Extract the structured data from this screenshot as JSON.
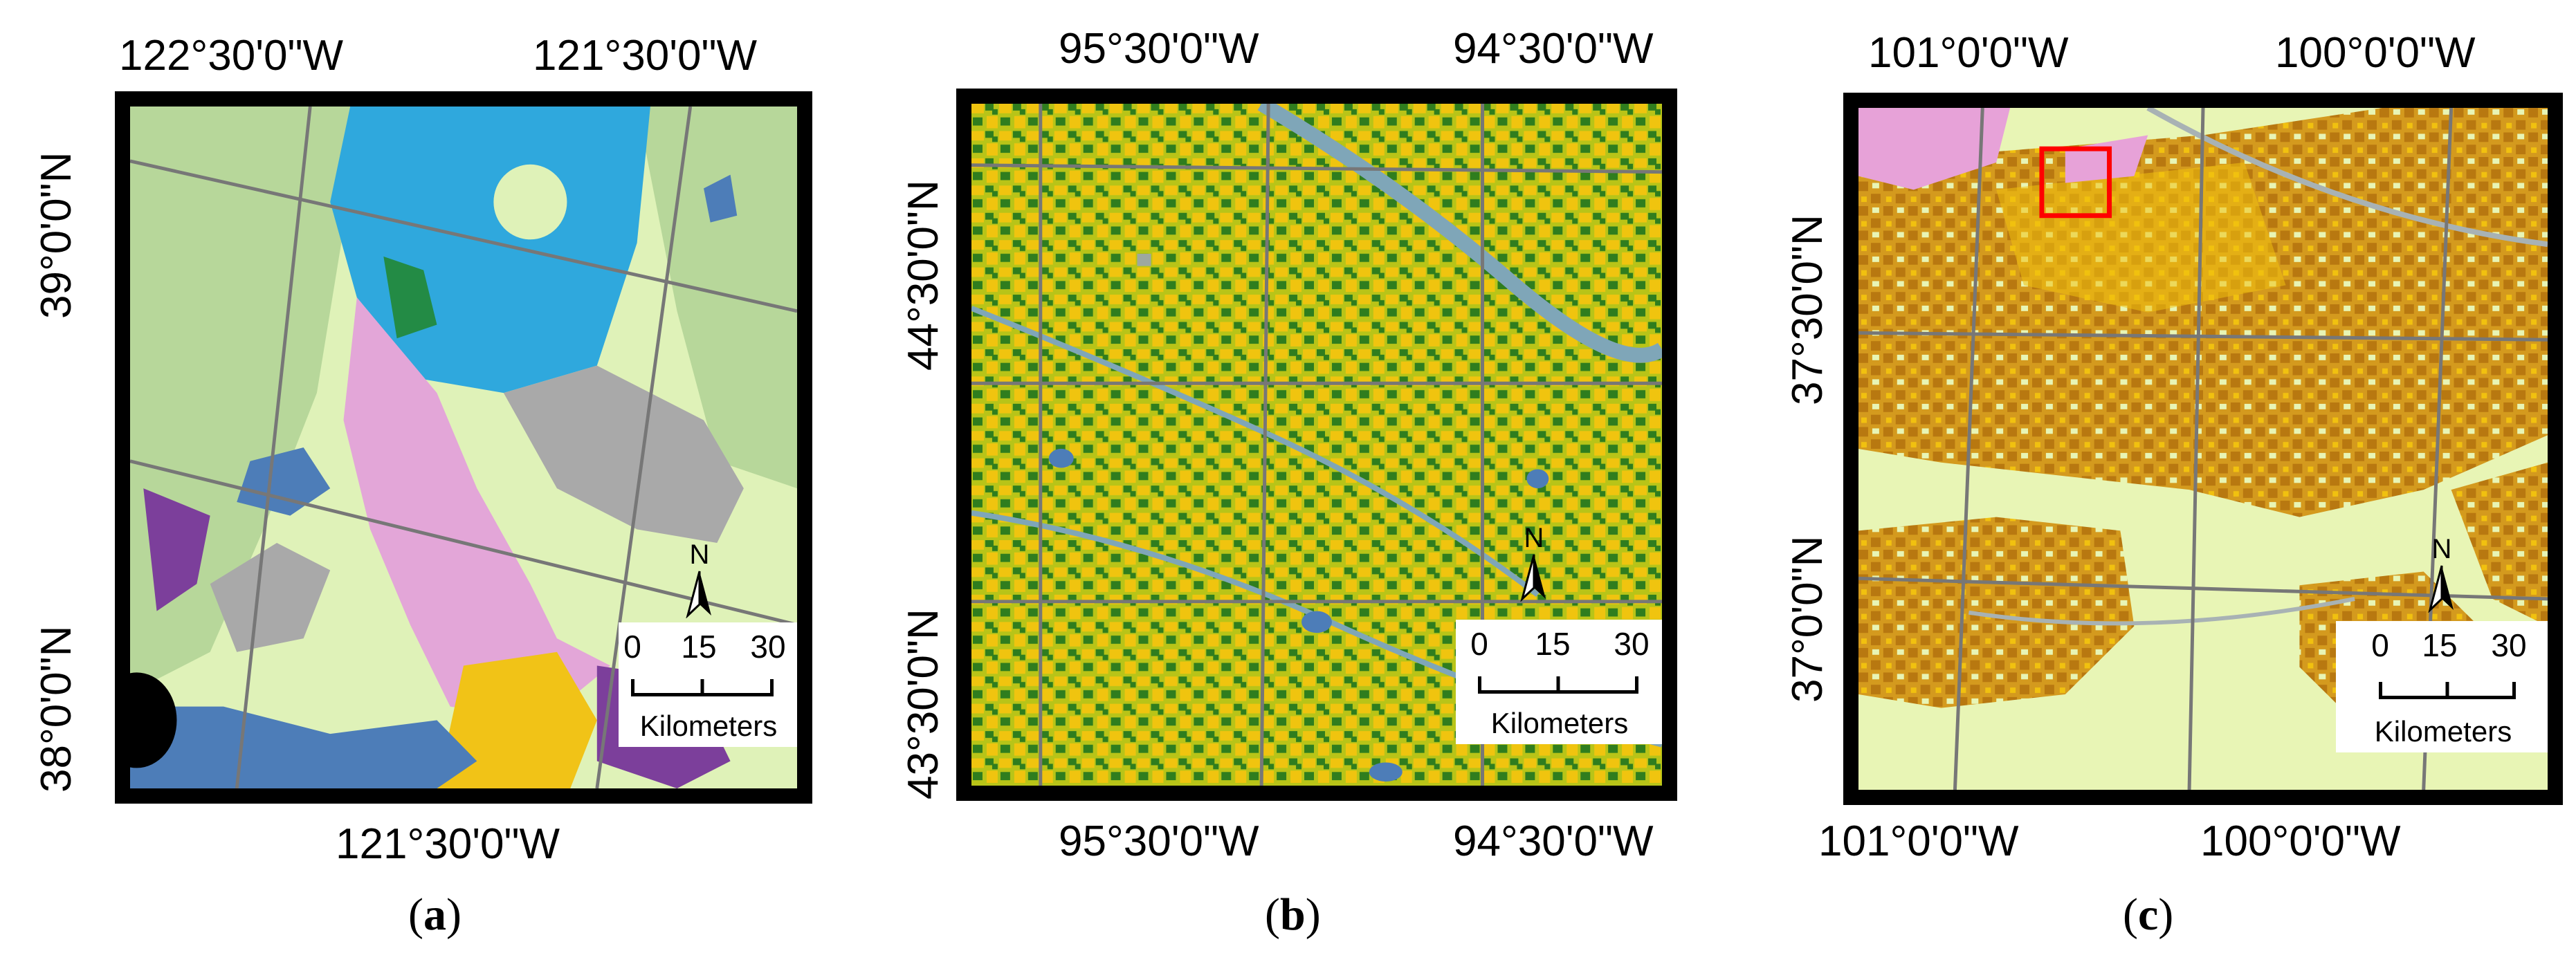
{
  "panels": [
    {
      "caption_open": "(",
      "caption_letter": "a",
      "caption_close": ")",
      "top_labels": [
        "122°30'0\"W",
        "121°30'0\"W"
      ],
      "bottom_labels": [
        "121°30'0\"W"
      ],
      "left_labels": [
        "39°0'0\"N",
        "38°0'0\"N"
      ],
      "scale": {
        "ticks": [
          "0",
          "15",
          "30"
        ],
        "unit": "Kilometers",
        "north": "N"
      },
      "colors": [
        "#b7d79a",
        "#dff2b8",
        "#2fa8dd",
        "#a9a9a9",
        "#e3a6d8",
        "#7c3f9b",
        "#f1c317",
        "#4d7db8",
        "#238b45",
        "#000000"
      ]
    },
    {
      "caption_open": "(",
      "caption_letter": "b",
      "caption_close": ")",
      "top_labels": [
        "95°30'0\"W",
        "94°30'0\"W"
      ],
      "bottom_labels": [
        "95°30'0\"W",
        "94°30'0\"W"
      ],
      "left_labels": [
        "44°30'0\"N",
        "43°30'0\"N"
      ],
      "scale": {
        "ticks": [
          "0",
          "15",
          "30"
        ],
        "unit": "Kilometers",
        "north": "N"
      },
      "colors": [
        "#b8c418",
        "#f0c40f",
        "#2f7d1e",
        "#7fa6b8",
        "#9da8a0"
      ]
    },
    {
      "caption_open": "(",
      "caption_letter": "c",
      "caption_close": ")",
      "top_labels": [
        "101°0'0\"W",
        "100°0'0\"W"
      ],
      "bottom_labels": [
        "101°0'0\"W",
        "100°0'0\"W"
      ],
      "left_labels": [
        "37°30'0\"N",
        "37°0'0\"N"
      ],
      "scale": {
        "ticks": [
          "0",
          "15",
          "30"
        ],
        "unit": "Kilometers",
        "north": "N"
      },
      "colors": [
        "#e8f5b5",
        "#d49a1e",
        "#b87810",
        "#f1c10f",
        "#e7a2d8",
        "#a8b2b4",
        "#ff0000"
      ]
    }
  ]
}
